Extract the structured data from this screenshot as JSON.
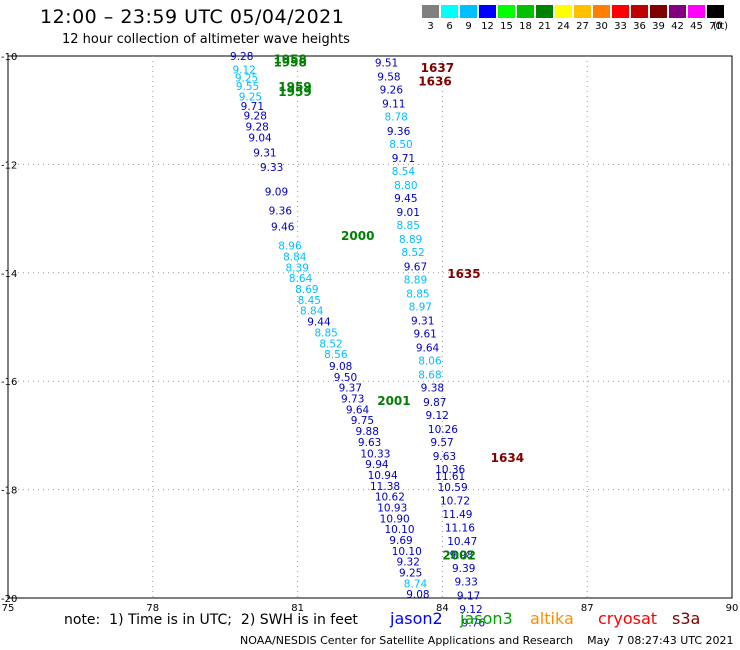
{
  "header": {
    "title": "12:00 – 23:59 UTC 05/04/2021",
    "subtitle": "12 hour collection of altimeter wave heights"
  },
  "legend": {
    "unit": "(ft)",
    "bins": [
      {
        "label": "3",
        "color": "#808080"
      },
      {
        "label": "6",
        "color": "#00ffff"
      },
      {
        "label": "9",
        "color": "#00bfff"
      },
      {
        "label": "12",
        "color": "#0000ff"
      },
      {
        "label": "15",
        "color": "#00ff00"
      },
      {
        "label": "18",
        "color": "#00c000"
      },
      {
        "label": "21",
        "color": "#008000"
      },
      {
        "label": "24",
        "color": "#ffff00"
      },
      {
        "label": "27",
        "color": "#ffc000"
      },
      {
        "label": "30",
        "color": "#ff8000"
      },
      {
        "label": "33",
        "color": "#ff0000"
      },
      {
        "label": "36",
        "color": "#c00000"
      },
      {
        "label": "39",
        "color": "#800000"
      },
      {
        "label": "42",
        "color": "#800080"
      },
      {
        "label": "45",
        "color": "#ff00ff"
      },
      {
        "label": "70",
        "color": "#000000"
      }
    ]
  },
  "map": {
    "lat_labels": [
      "-10",
      "-12",
      "-14",
      "-16",
      "-18",
      "-20"
    ],
    "lon_labels": [
      "75",
      "78",
      "81",
      "84",
      "87",
      "90"
    ],
    "lat_range": [
      -20,
      -10
    ],
    "lon_range": [
      75,
      90
    ]
  },
  "chart_data": {
    "type": "scatter",
    "time_labels": [
      {
        "text": "1958",
        "lon": 80.5,
        "lat": -10.05,
        "color": "#008000"
      },
      {
        "text": "1958",
        "lon": 80.5,
        "lat": -10.1,
        "color": "#008000"
      },
      {
        "text": "1959",
        "lon": 80.6,
        "lat": -10.55,
        "color": "#008000"
      },
      {
        "text": "1959",
        "lon": 80.6,
        "lat": -10.65,
        "color": "#008000"
      },
      {
        "text": "2000",
        "lon": 81.9,
        "lat": -13.3,
        "color": "#008000"
      },
      {
        "text": "2001",
        "lon": 82.65,
        "lat": -16.35,
        "color": "#008000"
      },
      {
        "text": "2002",
        "lon": 84.0,
        "lat": -19.2,
        "color": "#008000"
      },
      {
        "text": "1637",
        "lon": 83.55,
        "lat": -10.2,
        "color": "#800000"
      },
      {
        "text": "1636",
        "lon": 83.5,
        "lat": -10.45,
        "color": "#800000"
      },
      {
        "text": "1635",
        "lon": 84.1,
        "lat": -14.0,
        "color": "#800000"
      },
      {
        "text": "1634",
        "lon": 85.0,
        "lat": -17.4,
        "color": "#800000"
      }
    ],
    "tracks": [
      {
        "satellite": "jason2",
        "points": [
          {
            "value": "9.28",
            "lon": 79.6,
            "lat": -10.0,
            "color": "#0000c0"
          },
          {
            "value": "9.12",
            "lon": 79.65,
            "lat": -10.25,
            "color": "#00bfff"
          },
          {
            "value": "9.25",
            "lon": 79.7,
            "lat": -10.4,
            "color": "#00bfff"
          },
          {
            "value": "9.55",
            "lon": 79.72,
            "lat": -10.55,
            "color": "#00bfff"
          },
          {
            "value": "9.25",
            "lon": 79.78,
            "lat": -10.75,
            "color": "#00bfff"
          },
          {
            "value": "9.71",
            "lon": 79.82,
            "lat": -10.92,
            "color": "#0000c0"
          },
          {
            "value": "9.28",
            "lon": 79.88,
            "lat": -11.1,
            "color": "#0000c0"
          },
          {
            "value": "9.28",
            "lon": 79.92,
            "lat": -11.3,
            "color": "#0000c0"
          },
          {
            "value": "9.04",
            "lon": 79.98,
            "lat": -11.5,
            "color": "#0000c0"
          },
          {
            "value": "9.31",
            "lon": 80.08,
            "lat": -11.78,
            "color": "#0000c0"
          },
          {
            "value": "9.33",
            "lon": 80.22,
            "lat": -12.05,
            "color": "#0000c0"
          },
          {
            "value": "9.09",
            "lon": 80.32,
            "lat": -12.5,
            "color": "#0000c0"
          },
          {
            "value": "9.36",
            "lon": 80.4,
            "lat": -12.85,
            "color": "#0000c0"
          },
          {
            "value": "9.46",
            "lon": 80.45,
            "lat": -13.15,
            "color": "#0000c0"
          },
          {
            "value": "8.96",
            "lon": 80.6,
            "lat": -13.5,
            "color": "#00bfff"
          },
          {
            "value": "8.84",
            "lon": 80.7,
            "lat": -13.7,
            "color": "#00bfff"
          },
          {
            "value": "8.39",
            "lon": 80.75,
            "lat": -13.9,
            "color": "#00bfff"
          },
          {
            "value": "8.64",
            "lon": 80.82,
            "lat": -14.1,
            "color": "#00bfff"
          },
          {
            "value": "8.69",
            "lon": 80.95,
            "lat": -14.3,
            "color": "#00bfff"
          },
          {
            "value": "8.45",
            "lon": 81.0,
            "lat": -14.5,
            "color": "#00bfff"
          },
          {
            "value": "8.84",
            "lon": 81.05,
            "lat": -14.7,
            "color": "#00bfff"
          },
          {
            "value": "9.44",
            "lon": 81.2,
            "lat": -14.9,
            "color": "#0000c0"
          },
          {
            "value": "8.85",
            "lon": 81.35,
            "lat": -15.1,
            "color": "#00bfff"
          },
          {
            "value": "8.52",
            "lon": 81.45,
            "lat": -15.3,
            "color": "#00bfff"
          },
          {
            "value": "8.56",
            "lon": 81.55,
            "lat": -15.5,
            "color": "#00bfff"
          },
          {
            "value": "9.08",
            "lon": 81.65,
            "lat": -15.72,
            "color": "#0000c0"
          },
          {
            "value": "9.50",
            "lon": 81.75,
            "lat": -15.92,
            "color": "#0000c0"
          },
          {
            "value": "9.37",
            "lon": 81.85,
            "lat": -16.12,
            "color": "#0000c0"
          },
          {
            "value": "9.73",
            "lon": 81.9,
            "lat": -16.32,
            "color": "#0000c0"
          },
          {
            "value": "9.64",
            "lon": 82.0,
            "lat": -16.52,
            "color": "#0000c0"
          },
          {
            "value": "9.75",
            "lon": 82.1,
            "lat": -16.72,
            "color": "#0000c0"
          },
          {
            "value": "9.88",
            "lon": 82.2,
            "lat": -16.92,
            "color": "#0000c0"
          },
          {
            "value": "9.63",
            "lon": 82.25,
            "lat": -17.12,
            "color": "#0000c0"
          },
          {
            "value": "10.33",
            "lon": 82.3,
            "lat": -17.33,
            "color": "#0000c0"
          },
          {
            "value": "9.94",
            "lon": 82.4,
            "lat": -17.53,
            "color": "#0000c0"
          },
          {
            "value": "10.94",
            "lon": 82.45,
            "lat": -17.73,
            "color": "#0000c0"
          },
          {
            "value": "11.38",
            "lon": 82.5,
            "lat": -17.93,
            "color": "#0000c0"
          },
          {
            "value": "10.62",
            "lon": 82.6,
            "lat": -18.13,
            "color": "#0000c0"
          },
          {
            "value": "10.93",
            "lon": 82.65,
            "lat": -18.33,
            "color": "#0000c0"
          },
          {
            "value": "10.90",
            "lon": 82.7,
            "lat": -18.53,
            "color": "#0000c0"
          },
          {
            "value": "10.10",
            "lon": 82.8,
            "lat": -18.73,
            "color": "#0000c0"
          },
          {
            "value": "9.69",
            "lon": 82.9,
            "lat": -18.93,
            "color": "#0000c0"
          },
          {
            "value": "10.10",
            "lon": 82.95,
            "lat": -19.13,
            "color": "#0000c0"
          },
          {
            "value": "9.32",
            "lon": 83.05,
            "lat": -19.33,
            "color": "#0000c0"
          },
          {
            "value": "9.25",
            "lon": 83.1,
            "lat": -19.53,
            "color": "#0000c0"
          },
          {
            "value": "8.74",
            "lon": 83.2,
            "lat": -19.73,
            "color": "#00bfff"
          },
          {
            "value": "9.08",
            "lon": 83.25,
            "lat": -19.93,
            "color": "#0000c0"
          }
        ]
      },
      {
        "satellite": "jason3",
        "points": [
          {
            "value": "9.51",
            "lon": 82.6,
            "lat": -10.12,
            "color": "#0000c0"
          },
          {
            "value": "9.58",
            "lon": 82.65,
            "lat": -10.38,
            "color": "#0000c0"
          },
          {
            "value": "9.26",
            "lon": 82.7,
            "lat": -10.62,
            "color": "#0000c0"
          },
          {
            "value": "9.11",
            "lon": 82.75,
            "lat": -10.88,
            "color": "#0000c0"
          },
          {
            "value": "8.78",
            "lon": 82.8,
            "lat": -11.12,
            "color": "#00bfff"
          },
          {
            "value": "9.36",
            "lon": 82.85,
            "lat": -11.38,
            "color": "#0000c0"
          },
          {
            "value": "8.50",
            "lon": 82.9,
            "lat": -11.62,
            "color": "#00bfff"
          },
          {
            "value": "9.71",
            "lon": 82.95,
            "lat": -11.88,
            "color": "#0000c0"
          },
          {
            "value": "8.54",
            "lon": 82.95,
            "lat": -12.12,
            "color": "#00bfff"
          },
          {
            "value": "8.80",
            "lon": 83.0,
            "lat": -12.38,
            "color": "#00bfff"
          },
          {
            "value": "9.45",
            "lon": 83.0,
            "lat": -12.62,
            "color": "#0000c0"
          },
          {
            "value": "9.01",
            "lon": 83.05,
            "lat": -12.88,
            "color": "#0000c0"
          },
          {
            "value": "8.85",
            "lon": 83.05,
            "lat": -13.12,
            "color": "#00bfff"
          },
          {
            "value": "8.89",
            "lon": 83.1,
            "lat": -13.38,
            "color": "#00bfff"
          },
          {
            "value": "8.52",
            "lon": 83.15,
            "lat": -13.62,
            "color": "#00bfff"
          },
          {
            "value": "9.67",
            "lon": 83.2,
            "lat": -13.88,
            "color": "#0000c0"
          },
          {
            "value": "8.89",
            "lon": 83.2,
            "lat": -14.12,
            "color": "#00bfff"
          },
          {
            "value": "8.85",
            "lon": 83.25,
            "lat": -14.38,
            "color": "#00bfff"
          },
          {
            "value": "8.97",
            "lon": 83.3,
            "lat": -14.62,
            "color": "#00bfff"
          },
          {
            "value": "9.31",
            "lon": 83.35,
            "lat": -14.88,
            "color": "#0000c0"
          },
          {
            "value": "9.61",
            "lon": 83.4,
            "lat": -15.12,
            "color": "#0000c0"
          },
          {
            "value": "9.64",
            "lon": 83.45,
            "lat": -15.38,
            "color": "#0000c0"
          },
          {
            "value": "8.06",
            "lon": 83.5,
            "lat": -15.62,
            "color": "#00bfff"
          },
          {
            "value": "8.68",
            "lon": 83.5,
            "lat": -15.88,
            "color": "#00bfff"
          },
          {
            "value": "9.38",
            "lon": 83.55,
            "lat": -16.12,
            "color": "#0000c0"
          },
          {
            "value": "9.87",
            "lon": 83.6,
            "lat": -16.38,
            "color": "#0000c0"
          },
          {
            "value": "9.12",
            "lon": 83.65,
            "lat": -16.62,
            "color": "#0000c0"
          },
          {
            "value": "10.26",
            "lon": 83.7,
            "lat": -16.88,
            "color": "#0000c0"
          },
          {
            "value": "9.57",
            "lon": 83.75,
            "lat": -17.12,
            "color": "#0000c0"
          },
          {
            "value": "9.63",
            "lon": 83.8,
            "lat": -17.38,
            "color": "#0000c0"
          },
          {
            "value": "10.36",
            "lon": 83.85,
            "lat": -17.62,
            "color": "#0000c0"
          },
          {
            "value": "11.61",
            "lon": 83.85,
            "lat": -17.75,
            "color": "#0000c0"
          },
          {
            "value": "10.59",
            "lon": 83.9,
            "lat": -17.95,
            "color": "#0000c0"
          },
          {
            "value": "10.72",
            "lon": 83.95,
            "lat": -18.2,
            "color": "#0000c0"
          },
          {
            "value": "11.49",
            "lon": 84.0,
            "lat": -18.45,
            "color": "#0000c0"
          },
          {
            "value": "11.16",
            "lon": 84.05,
            "lat": -18.7,
            "color": "#0000c0"
          },
          {
            "value": "10.47",
            "lon": 84.1,
            "lat": -18.95,
            "color": "#0000c0"
          },
          {
            "value": "9.98",
            "lon": 84.15,
            "lat": -19.2,
            "color": "#0000c0"
          },
          {
            "value": "9.39",
            "lon": 84.2,
            "lat": -19.45,
            "color": "#0000c0"
          },
          {
            "value": "9.33",
            "lon": 84.25,
            "lat": -19.7,
            "color": "#0000c0"
          },
          {
            "value": "9.17",
            "lon": 84.3,
            "lat": -19.95,
            "color": "#0000c0"
          },
          {
            "value": "9.12",
            "lon": 84.35,
            "lat": -20.2,
            "color": "#0000c0"
          },
          {
            "value": "9.76",
            "lon": 84.4,
            "lat": -20.45,
            "color": "#0000c0"
          }
        ]
      }
    ]
  },
  "footer": {
    "note": "note:  1) Time is in UTC;  2) SWH is in feet",
    "satellites": [
      {
        "name": "jason2",
        "color": "#0000ff"
      },
      {
        "name": "jason3",
        "color": "#00a000"
      },
      {
        "name": "altika",
        "color": "#ff8c00"
      },
      {
        "name": "cryosat",
        "color": "#ff0000"
      },
      {
        "name": "s3a",
        "color": "#800000"
      }
    ],
    "credit": "NOAA/NESDIS Center for Satellite Applications and Research    May  7 08:27:43 UTC 2021"
  }
}
